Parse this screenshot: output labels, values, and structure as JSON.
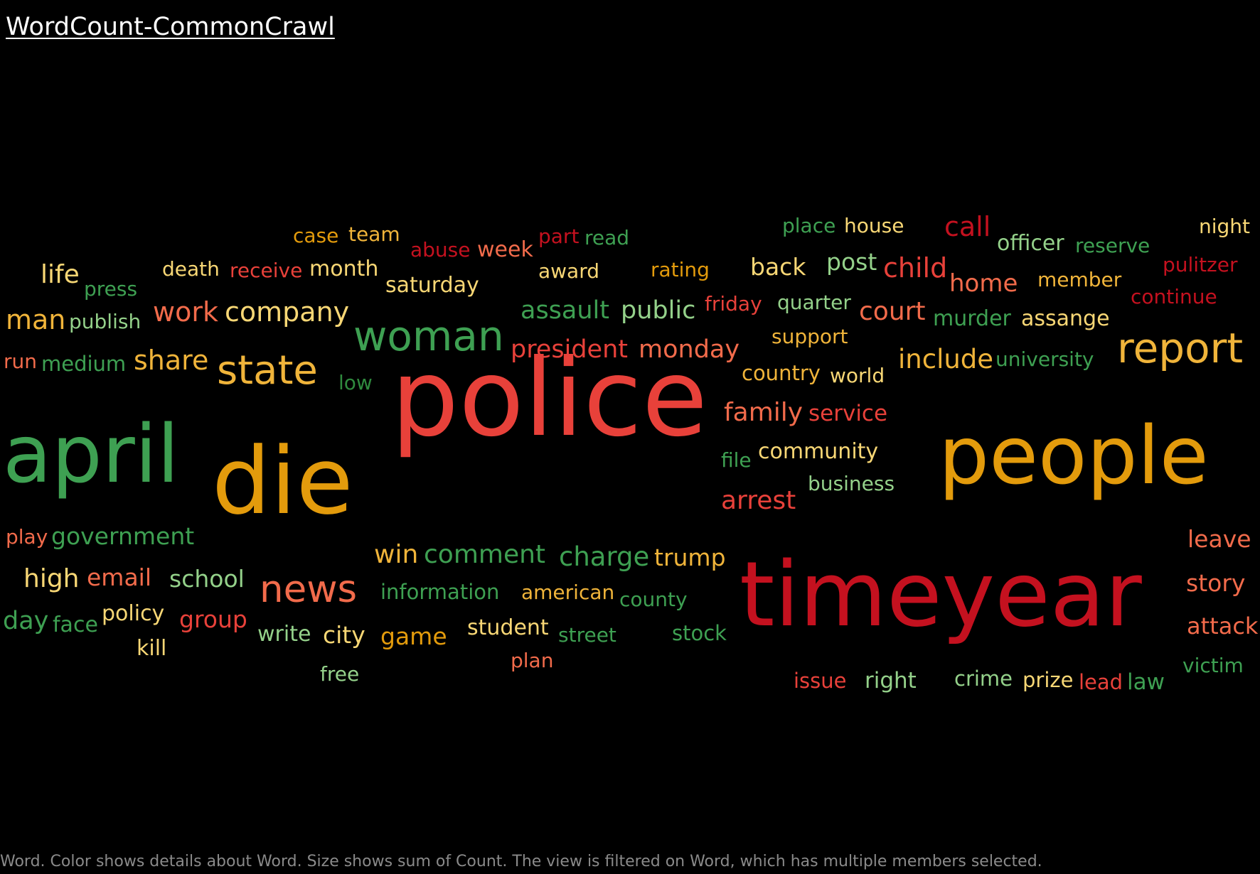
{
  "title": "WordCount-CommonCrawl",
  "caption": "Word.  Color shows details about Word.  Size shows sum of Count. The view is filtered on Word, which has multiple members selected.",
  "palette": {
    "dark_red": "#c4111f",
    "red": "#e8413a",
    "salmon": "#f26b4b",
    "orange": "#e39b0c",
    "light_orange": "#f0b43a",
    "yellow": "#f8d775",
    "light_green": "#94d18a",
    "green": "#3ea052",
    "dark_green": "#2f8a3e"
  },
  "chart_data": {
    "type": "wordcloud",
    "size_encodes": "sum of Count",
    "color_encodes": "Word",
    "words": [
      {
        "word": "police",
        "count": 100,
        "color": "#e8413a"
      },
      {
        "word": "timeyear",
        "count": 90,
        "color": "#c4111f"
      },
      {
        "word": "people",
        "count": 88,
        "color": "#e39b0c"
      },
      {
        "word": "die",
        "count": 92,
        "color": "#e39b0c"
      },
      {
        "word": "april",
        "count": 86,
        "color": "#3ea052"
      },
      {
        "word": "woman",
        "count": 40,
        "color": "#3ea052"
      },
      {
        "word": "report",
        "count": 40,
        "color": "#f0b43a"
      },
      {
        "word": "state",
        "count": 40,
        "color": "#f0b43a"
      },
      {
        "word": "news",
        "count": 40,
        "color": "#f26b4b"
      },
      {
        "word": "company",
        "count": 28,
        "color": "#f8d775"
      },
      {
        "word": "work",
        "count": 28,
        "color": "#f26b4b"
      },
      {
        "word": "man",
        "count": 28,
        "color": "#f0b43a"
      },
      {
        "word": "life",
        "count": 26,
        "color": "#f8d775"
      },
      {
        "word": "share",
        "count": 28,
        "color": "#f0b43a"
      },
      {
        "word": "assault",
        "count": 26,
        "color": "#3ea052"
      },
      {
        "word": "public",
        "count": 26,
        "color": "#94d18a"
      },
      {
        "word": "president",
        "count": 26,
        "color": "#e8413a"
      },
      {
        "word": "monday",
        "count": 26,
        "color": "#f26b4b"
      },
      {
        "word": "court",
        "count": 26,
        "color": "#f26b4b"
      },
      {
        "word": "child",
        "count": 27,
        "color": "#e8413a"
      },
      {
        "word": "include",
        "count": 27,
        "color": "#f0b43a"
      },
      {
        "word": "family",
        "count": 26,
        "color": "#f26b4b"
      },
      {
        "word": "arrest",
        "count": 26,
        "color": "#e8413a"
      },
      {
        "word": "charge",
        "count": 27,
        "color": "#3ea052"
      },
      {
        "word": "comment",
        "count": 26,
        "color": "#3ea052"
      },
      {
        "word": "win",
        "count": 26,
        "color": "#f0b43a"
      },
      {
        "word": "trump",
        "count": 24,
        "color": "#f0b43a"
      },
      {
        "word": "high",
        "count": 26,
        "color": "#f8d775"
      },
      {
        "word": "government",
        "count": 24,
        "color": "#3ea052"
      },
      {
        "word": "school",
        "count": 24,
        "color": "#94d18a"
      },
      {
        "word": "email",
        "count": 24,
        "color": "#f26b4b"
      },
      {
        "word": "day",
        "count": 24,
        "color": "#3ea052"
      },
      {
        "word": "group",
        "count": 23,
        "color": "#e8413a"
      },
      {
        "word": "game",
        "count": 23,
        "color": "#e39b0c"
      },
      {
        "word": "call",
        "count": 26,
        "color": "#c4111f"
      },
      {
        "word": "home",
        "count": 24,
        "color": "#f26b4b"
      },
      {
        "word": "back",
        "count": 24,
        "color": "#f8d775"
      },
      {
        "word": "post",
        "count": 23,
        "color": "#94d18a"
      },
      {
        "word": "leave",
        "count": 24,
        "color": "#f26b4b"
      },
      {
        "word": "story",
        "count": 23,
        "color": "#f26b4b"
      },
      {
        "word": "attack",
        "count": 23,
        "color": "#f26b4b"
      },
      {
        "word": "saturday",
        "count": 22,
        "color": "#f8d775"
      },
      {
        "word": "officer",
        "count": 22,
        "color": "#94d18a"
      },
      {
        "word": "world",
        "count": 21,
        "color": "#f8d775"
      },
      {
        "word": "country",
        "count": 21,
        "color": "#f0b43a"
      },
      {
        "word": "service",
        "count": 22,
        "color": "#e8413a"
      },
      {
        "word": "community",
        "count": 22,
        "color": "#f8d775"
      },
      {
        "word": "murder",
        "count": 22,
        "color": "#3ea052"
      },
      {
        "word": "assange",
        "count": 21,
        "color": "#f8d775"
      },
      {
        "word": "month",
        "count": 22,
        "color": "#f8d775"
      },
      {
        "word": "death",
        "count": 20,
        "color": "#f8d775"
      },
      {
        "word": "receive",
        "count": 20,
        "color": "#e8413a"
      },
      {
        "word": "publish",
        "count": 20,
        "color": "#94d18a"
      },
      {
        "word": "medium",
        "count": 20,
        "color": "#3ea052"
      },
      {
        "word": "run",
        "count": 20,
        "color": "#f26b4b"
      },
      {
        "word": "case",
        "count": 20,
        "color": "#e39b0c"
      },
      {
        "word": "team",
        "count": 19,
        "color": "#f0b43a"
      },
      {
        "word": "abuse",
        "count": 19,
        "color": "#c4111f"
      },
      {
        "word": "week",
        "count": 19,
        "color": "#f26b4b"
      },
      {
        "word": "part",
        "count": 18,
        "color": "#c4111f"
      },
      {
        "word": "read",
        "count": 19,
        "color": "#3ea052"
      },
      {
        "word": "award",
        "count": 20,
        "color": "#f8d775"
      },
      {
        "word": "rating",
        "count": 19,
        "color": "#e39b0c"
      },
      {
        "word": "friday",
        "count": 20,
        "color": "#e8413a"
      },
      {
        "word": "quarter",
        "count": 19,
        "color": "#94d18a"
      },
      {
        "word": "support",
        "count": 19,
        "color": "#f0b43a"
      },
      {
        "word": "place",
        "count": 19,
        "color": "#3ea052"
      },
      {
        "word": "house",
        "count": 19,
        "color": "#f8d775"
      },
      {
        "word": "reserve",
        "count": 19,
        "color": "#3ea052"
      },
      {
        "word": "member",
        "count": 19,
        "color": "#f0b43a"
      },
      {
        "word": "night",
        "count": 19,
        "color": "#f8d775"
      },
      {
        "word": "pulitzer",
        "count": 19,
        "color": "#c4111f"
      },
      {
        "word": "continue",
        "count": 19,
        "color": "#c4111f"
      },
      {
        "word": "university",
        "count": 19,
        "color": "#3ea052"
      },
      {
        "word": "press",
        "count": 19,
        "color": "#3ea052"
      },
      {
        "word": "low",
        "count": 19,
        "color": "#2f8a3e"
      },
      {
        "word": "file",
        "count": 19,
        "color": "#3ea052"
      },
      {
        "word": "business",
        "count": 19,
        "color": "#94d18a"
      },
      {
        "word": "play",
        "count": 20,
        "color": "#f26b4b"
      },
      {
        "word": "information",
        "count": 20,
        "color": "#3ea052"
      },
      {
        "word": "american",
        "count": 19,
        "color": "#f0b43a"
      },
      {
        "word": "county",
        "count": 19,
        "color": "#3ea052"
      },
      {
        "word": "policy",
        "count": 19,
        "color": "#f8d775"
      },
      {
        "word": "face",
        "count": 19,
        "color": "#3ea052"
      },
      {
        "word": "kill",
        "count": 19,
        "color": "#f8d775"
      },
      {
        "word": "write",
        "count": 19,
        "color": "#94d18a"
      },
      {
        "word": "city",
        "count": 20,
        "color": "#f8d775"
      },
      {
        "word": "student",
        "count": 19,
        "color": "#f8d775"
      },
      {
        "word": "street",
        "count": 19,
        "color": "#3ea052"
      },
      {
        "word": "stock",
        "count": 19,
        "color": "#3ea052"
      },
      {
        "word": "plan",
        "count": 19,
        "color": "#f26b4b"
      },
      {
        "word": "free",
        "count": 19,
        "color": "#94d18a"
      },
      {
        "word": "issue",
        "count": 19,
        "color": "#e8413a"
      },
      {
        "word": "right",
        "count": 20,
        "color": "#94d18a"
      },
      {
        "word": "crime",
        "count": 19,
        "color": "#94d18a"
      },
      {
        "word": "prize",
        "count": 19,
        "color": "#f8d775"
      },
      {
        "word": "lead",
        "count": 19,
        "color": "#e8413a"
      },
      {
        "word": "law",
        "count": 20,
        "color": "#3ea052"
      },
      {
        "word": "victim",
        "count": 19,
        "color": "#3ea052"
      }
    ]
  }
}
